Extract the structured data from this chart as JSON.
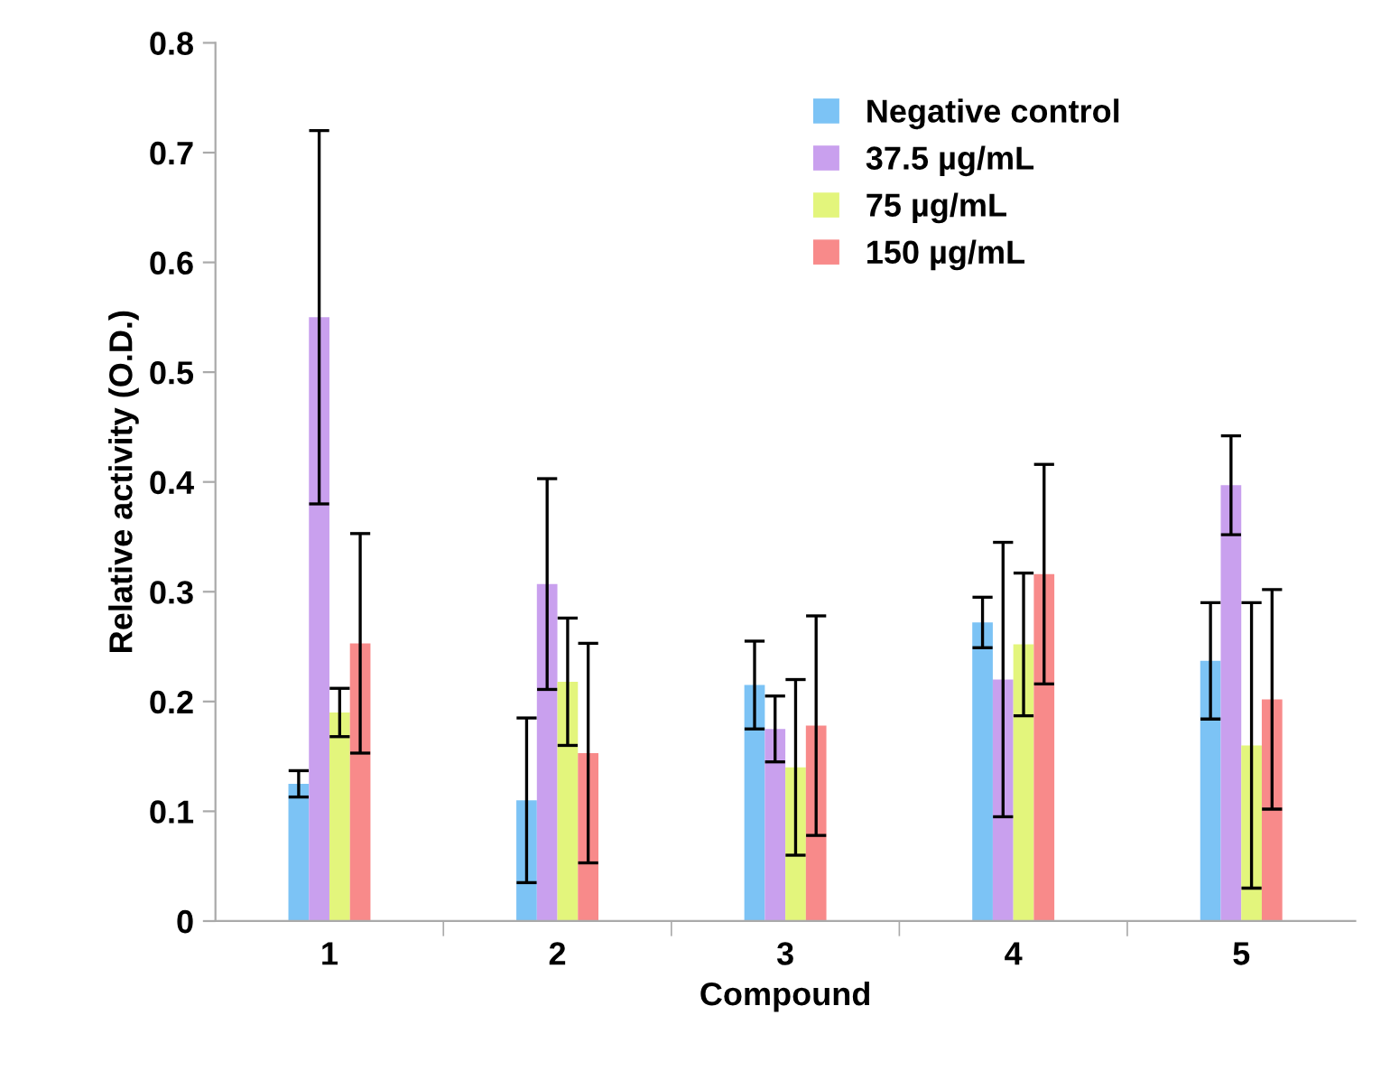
{
  "chart_data": {
    "type": "bar",
    "xlabel": "Compound",
    "ylabel": "Relative activity (O.D.)",
    "categories": [
      "1",
      "2",
      "3",
      "4",
      "5"
    ],
    "ylim": [
      0,
      0.8
    ],
    "yticks": [
      0,
      0.1,
      0.2,
      0.3,
      0.4,
      0.5,
      0.6,
      0.7,
      0.8
    ],
    "grid": false,
    "legend": "top right",
    "series": [
      {
        "name": "Negative control",
        "color": "#7cc3f5",
        "values": [
          0.125,
          0.11,
          0.215,
          0.272,
          0.237
        ],
        "errors": [
          0.012,
          0.075,
          0.04,
          0.023,
          0.053
        ]
      },
      {
        "name": "37.5 µg/mL",
        "color": "#c9a0ee",
        "values": [
          0.55,
          0.307,
          0.175,
          0.22,
          0.397
        ],
        "errors": [
          0.17,
          0.096,
          0.03,
          0.125,
          0.045
        ]
      },
      {
        "name": "75 µg/mL",
        "color": "#e3f57c",
        "values": [
          0.19,
          0.218,
          0.14,
          0.252,
          0.16
        ],
        "errors": [
          0.022,
          0.058,
          0.08,
          0.065,
          0.13
        ]
      },
      {
        "name": "150 µg/mL",
        "color": "#f88a8a",
        "values": [
          0.253,
          0.153,
          0.178,
          0.316,
          0.202
        ],
        "errors": [
          0.1,
          0.1,
          0.1,
          0.1,
          0.1
        ]
      }
    ]
  }
}
